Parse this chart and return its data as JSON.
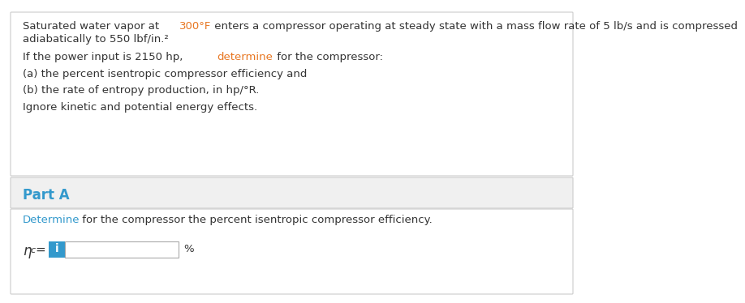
{
  "bg_color": "#ffffff",
  "section1_bg": "#ffffff",
  "section2_bg": "#f0f0f0",
  "section3_bg": "#ffffff",
  "border_color": "#cccccc",
  "part_a_color": "#3399cc",
  "highlight_color": "#3399cc",
  "dark_text": "#333333",
  "orange": "#e87722",
  "box_color": "#3399cc",
  "input_border": "#aaaaaa",
  "font_size_body": 9.5,
  "font_size_part": 12,
  "segments_line1": [
    [
      "Saturated water vapor at ",
      "#333333"
    ],
    [
      "300°F",
      "#e87722"
    ],
    [
      " enters a compressor operating at steady state with a mass flow rate of 5 lb/s and is compressed",
      "#333333"
    ]
  ],
  "line2": "adiabatically to 550 lbf/in.²",
  "segments_line3": [
    [
      "If the power input is 2150 hp, ",
      "#333333"
    ],
    [
      "determine",
      "#e87722"
    ],
    [
      " for the compressor:",
      "#333333"
    ]
  ],
  "line4": "(a) the percent isentropic compressor efficiency and",
  "line5": "(b) the rate of entropy production, in hp/°R.",
  "line6": "Ignore kinetic and potential energy effects.",
  "part_label": "Part A",
  "segments_instruction": [
    [
      "Determine",
      "#3399cc"
    ],
    [
      " for the compressor the percent isentropic compressor efficiency.",
      "#333333"
    ]
  ],
  "percent_label": "%"
}
